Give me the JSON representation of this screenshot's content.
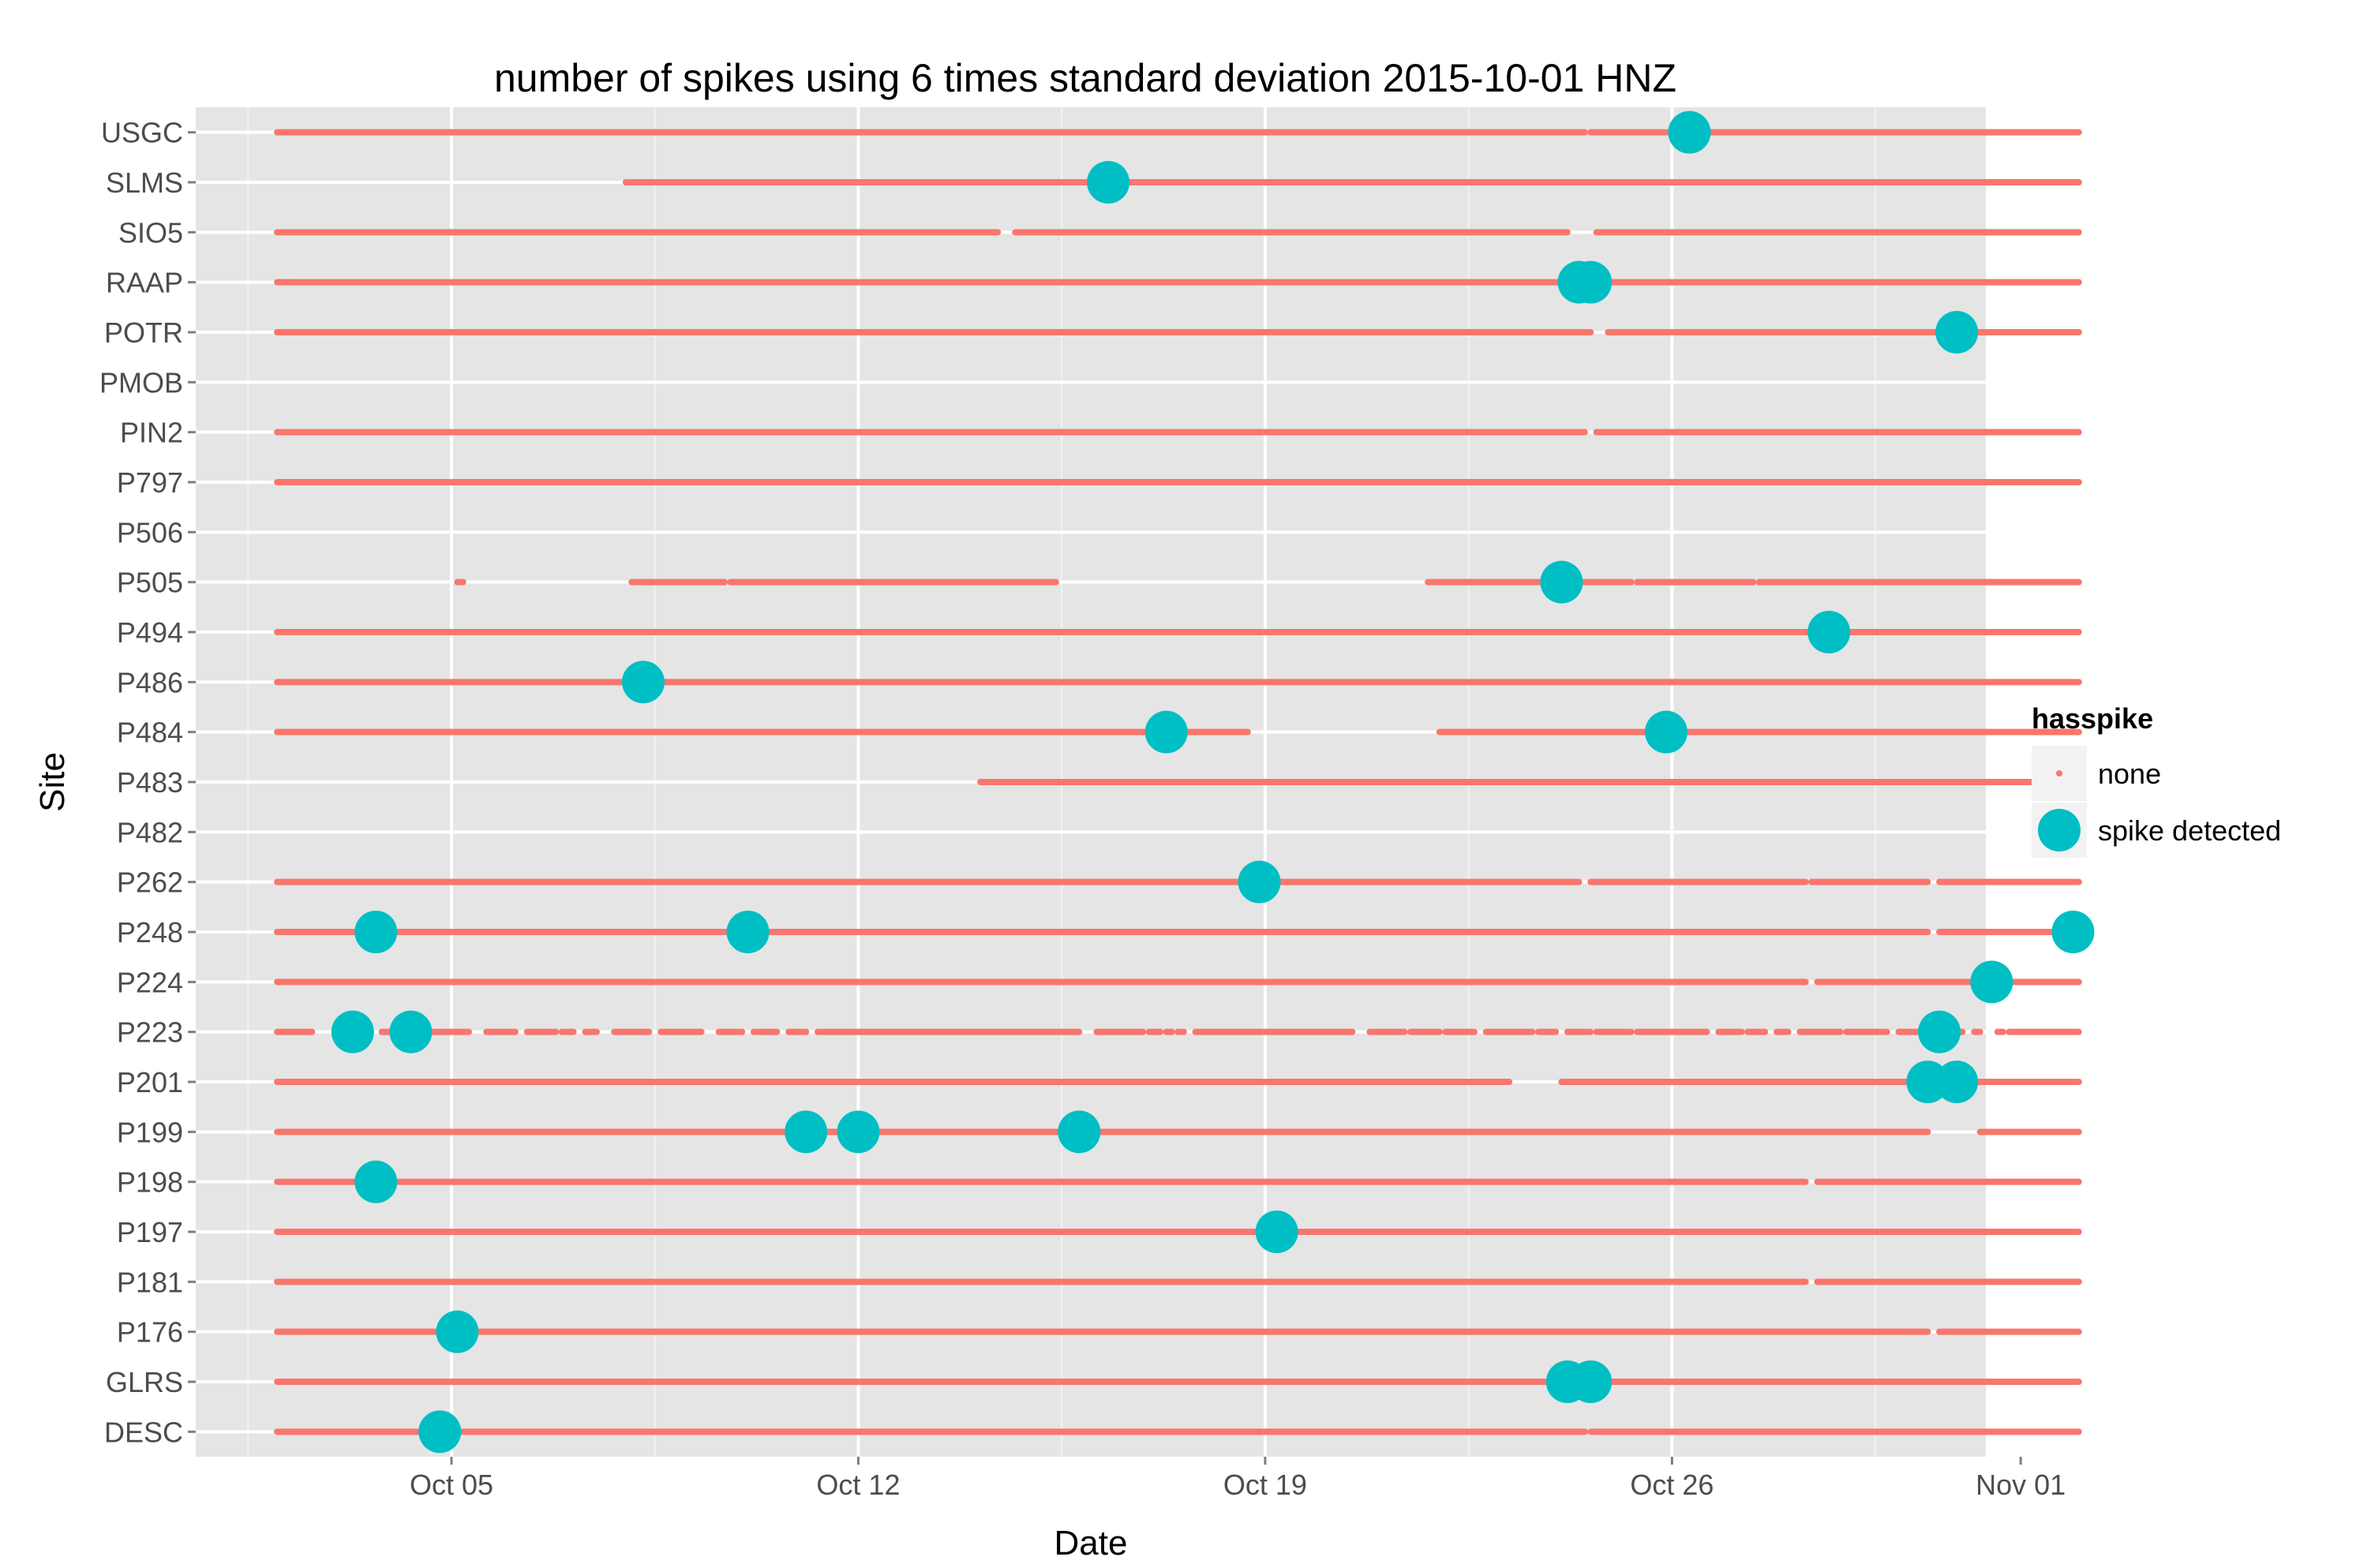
{
  "chart_data": {
    "type": "scatter",
    "title": "number of spikes using  6 times standard deviation 2015-10-01 HNZ",
    "xlabel": "Date",
    "ylabel": "Site",
    "xlim": [
      -0.4,
      30.4
    ],
    "x_ticks": [
      {
        "value": 4,
        "label": "Oct 05"
      },
      {
        "value": 11,
        "label": "Oct 12"
      },
      {
        "value": 18,
        "label": "Oct 19"
      },
      {
        "value": 25,
        "label": "Oct 26"
      },
      {
        "value": 31,
        "label": "Nov 01"
      }
    ],
    "x_minor_ticks": [
      0.5,
      7.5,
      14.5,
      21.5,
      28.5
    ],
    "sites": [
      "USGC",
      "SLMS",
      "SIO5",
      "RAAP",
      "POTR",
      "PMOB",
      "PIN2",
      "P797",
      "P506",
      "P505",
      "P494",
      "P486",
      "P484",
      "P483",
      "P482",
      "P262",
      "P248",
      "P224",
      "P223",
      "P201",
      "P199",
      "P198",
      "P197",
      "P181",
      "P176",
      "GLRS",
      "DESC"
    ],
    "legend": {
      "title": "hasspike",
      "position": "right",
      "entries": [
        {
          "label": "none",
          "color": "#F8766D"
        },
        {
          "label": "spike detected",
          "color": "#00BFC4"
        }
      ]
    },
    "series": [
      {
        "name": "none",
        "color": "#F8766D",
        "segments": {
          "USGC": [
            [
              1.0,
              23.5
            ],
            [
              23.6,
              32.0
            ]
          ],
          "SLMS": [
            [
              7.0,
              32.0
            ]
          ],
          "SIO5": [
            [
              1.0,
              13.4
            ],
            [
              13.7,
              23.2
            ],
            [
              23.7,
              32.0
            ]
          ],
          "RAAP": [
            [
              1.0,
              32.0
            ]
          ],
          "POTR": [
            [
              1.0,
              23.6
            ],
            [
              23.9,
              32.0
            ]
          ],
          "PMOB": [],
          "PIN2": [
            [
              1.0,
              23.5
            ],
            [
              23.7,
              32.0
            ]
          ],
          "P797": [
            [
              1.0,
              32.0
            ]
          ],
          "P506": [],
          "P505": [
            [
              4.1,
              4.2
            ],
            [
              7.1,
              8.7
            ],
            [
              8.8,
              14.4
            ],
            [
              20.8,
              24.3
            ],
            [
              24.4,
              26.4
            ],
            [
              26.5,
              32.0
            ]
          ],
          "P494": [
            [
              1.0,
              32.0
            ]
          ],
          "P486": [
            [
              1.0,
              32.0
            ]
          ],
          "P484": [
            [
              1.0,
              17.7
            ],
            [
              21.0,
              32.0
            ]
          ],
          "P483": [
            [
              13.1,
              32.0
            ]
          ],
          "P482": [],
          "P262": [
            [
              1.0,
              23.4
            ],
            [
              23.6,
              27.3
            ],
            [
              27.4,
              29.4
            ],
            [
              29.6,
              32.0
            ]
          ],
          "P248": [
            [
              1.0,
              29.4
            ],
            [
              29.6,
              32.0
            ]
          ],
          "P224": [
            [
              1.0,
              27.3
            ],
            [
              27.5,
              32.0
            ]
          ],
          "P223": [
            [
              1.0,
              1.6
            ],
            [
              2.0,
              2.1
            ],
            [
              2.4,
              2.5
            ],
            [
              2.8,
              4.3
            ],
            [
              4.6,
              5.1
            ],
            [
              5.3,
              5.8
            ],
            [
              5.9,
              6.1
            ],
            [
              6.3,
              6.5
            ],
            [
              6.8,
              7.4
            ],
            [
              7.6,
              8.3
            ],
            [
              8.6,
              9.0
            ],
            [
              9.2,
              9.6
            ],
            [
              9.8,
              10.1
            ],
            [
              10.3,
              14.8
            ],
            [
              15.1,
              15.9
            ],
            [
              16.0,
              16.2
            ],
            [
              16.3,
              16.4
            ],
            [
              16.5,
              16.6
            ],
            [
              16.8,
              19.5
            ],
            [
              19.8,
              20.4
            ],
            [
              20.5,
              21.0
            ],
            [
              21.1,
              21.6
            ],
            [
              21.8,
              22.6
            ],
            [
              22.7,
              23.0
            ],
            [
              23.2,
              23.6
            ],
            [
              23.7,
              24.3
            ],
            [
              24.4,
              25.6
            ],
            [
              25.8,
              26.2
            ],
            [
              26.3,
              26.6
            ],
            [
              26.8,
              27.0
            ],
            [
              27.2,
              27.9
            ],
            [
              28.0,
              28.7
            ],
            [
              28.9,
              30.0
            ],
            [
              30.2,
              30.3
            ],
            [
              30.6,
              30.7
            ],
            [
              30.8,
              32.0
            ]
          ],
          "P201": [
            [
              1.0,
              22.2
            ],
            [
              23.1,
              32.0
            ]
          ],
          "P199": [
            [
              1.0,
              29.4
            ],
            [
              30.3,
              32.0
            ]
          ],
          "P198": [
            [
              1.0,
              27.3
            ],
            [
              27.5,
              32.0
            ]
          ],
          "P197": [
            [
              1.0,
              32.0
            ]
          ],
          "P181": [
            [
              1.0,
              27.3
            ],
            [
              27.5,
              32.0
            ]
          ],
          "P176": [
            [
              1.0,
              29.4
            ],
            [
              29.6,
              32.0
            ]
          ],
          "GLRS": [
            [
              1.0,
              32.0
            ]
          ],
          "DESC": [
            [
              1.0,
              23.5
            ],
            [
              23.6,
              32.0
            ]
          ]
        }
      },
      {
        "name": "spike detected",
        "color": "#00BFC4",
        "points": [
          {
            "site": "USGC",
            "x": 25.3
          },
          {
            "site": "SLMS",
            "x": 15.3
          },
          {
            "site": "RAAP",
            "x": 23.4
          },
          {
            "site": "RAAP",
            "x": 23.6
          },
          {
            "site": "POTR",
            "x": 29.9
          },
          {
            "site": "P505",
            "x": 23.1
          },
          {
            "site": "P494",
            "x": 27.7
          },
          {
            "site": "P486",
            "x": 7.3
          },
          {
            "site": "P484",
            "x": 16.3
          },
          {
            "site": "P484",
            "x": 24.9
          },
          {
            "site": "P262",
            "x": 17.9
          },
          {
            "site": "P248",
            "x": 2.7
          },
          {
            "site": "P248",
            "x": 9.1
          },
          {
            "site": "P248",
            "x": 31.9
          },
          {
            "site": "P224",
            "x": 30.5
          },
          {
            "site": "P223",
            "x": 2.3
          },
          {
            "site": "P223",
            "x": 3.3
          },
          {
            "site": "P223",
            "x": 29.6
          },
          {
            "site": "P201",
            "x": 29.4
          },
          {
            "site": "P201",
            "x": 29.9
          },
          {
            "site": "P199",
            "x": 10.1
          },
          {
            "site": "P199",
            "x": 11.0
          },
          {
            "site": "P199",
            "x": 14.8
          },
          {
            "site": "P198",
            "x": 2.7
          },
          {
            "site": "P197",
            "x": 18.2
          },
          {
            "site": "P176",
            "x": 4.1
          },
          {
            "site": "GLRS",
            "x": 23.2
          },
          {
            "site": "GLRS",
            "x": 23.6
          },
          {
            "site": "DESC",
            "x": 3.8
          }
        ]
      }
    ]
  }
}
